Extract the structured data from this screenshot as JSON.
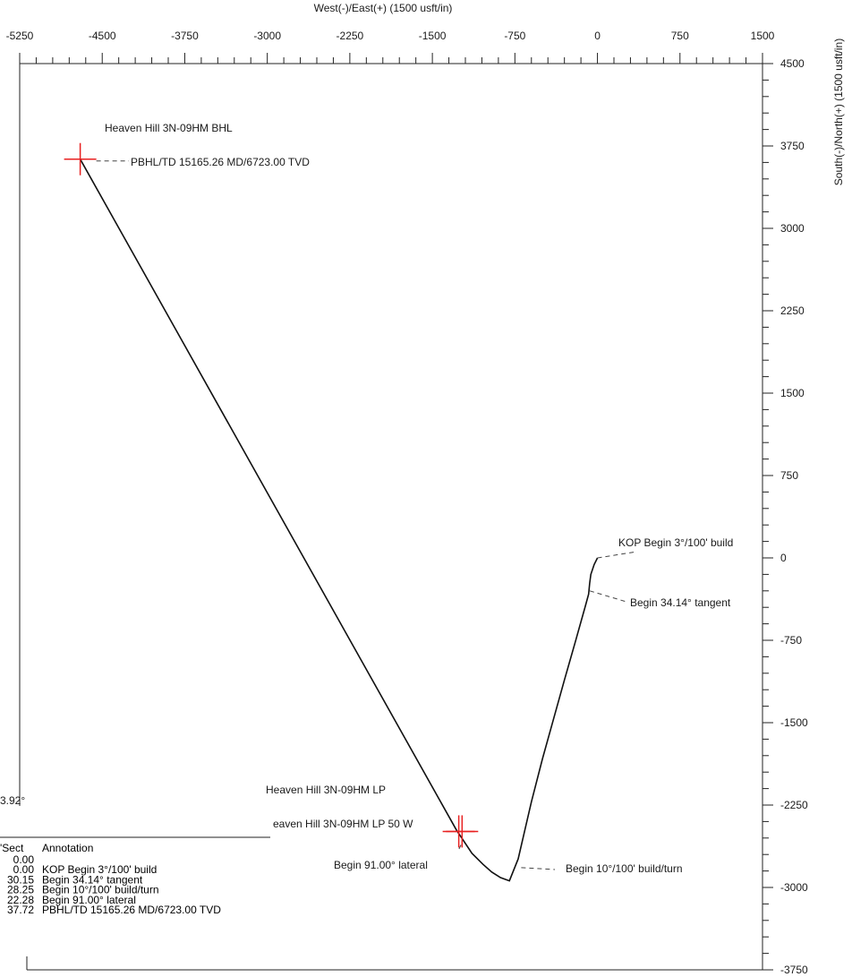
{
  "chart_data": {
    "type": "line",
    "title": "",
    "xlabel": "West(-)/East(+) (1500 usft/in)",
    "ylabel": "South(-)/North(+) (1500 usft/in)",
    "xlim": [
      -5250,
      1500
    ],
    "ylim": [
      -3750,
      4500
    ],
    "x_ticks": [
      "-5250",
      "-4500",
      "-3750",
      "-3000",
      "-2250",
      "-1500",
      "-750",
      "0",
      "750",
      "1500"
    ],
    "y_ticks": [
      "4500",
      "3750",
      "3000",
      "2250",
      "1500",
      "750",
      "0",
      "-750",
      "-1500",
      "-2250",
      "-3000",
      "-3750"
    ],
    "series": [
      {
        "name": "",
        "points": [
          [
            0,
            0
          ],
          [
            -30,
            -60
          ],
          [
            -60,
            -150
          ],
          [
            -70,
            -230
          ],
          [
            -80,
            -330
          ],
          [
            -110,
            -440
          ],
          [
            -200,
            -760
          ],
          [
            -300,
            -1110
          ],
          [
            -400,
            -1470
          ],
          [
            -500,
            -1830
          ],
          [
            -600,
            -2220
          ],
          [
            -660,
            -2480
          ],
          [
            -720,
            -2740
          ],
          [
            -800,
            -2940
          ],
          [
            -880,
            -2910
          ],
          [
            -960,
            -2860
          ],
          [
            -1040,
            -2790
          ],
          [
            -1140,
            -2690
          ],
          [
            -1280,
            -2480
          ],
          [
            -4700,
            3630
          ]
        ]
      }
    ],
    "targets": [
      {
        "label": "Heaven Hill 3N-09HM BHL",
        "x": -4700,
        "y": 3630
      },
      {
        "label": "Heaven Hill 3N-09HM LP",
        "x": -1260,
        "y": -2490
      },
      {
        "label": "eaven Hill 3N-09HM LP 50 W",
        "x": -1230,
        "y": -2490
      }
    ],
    "annotations": [
      {
        "text": "PBHL/TD 15165.26 MD/6723.00 TVD",
        "x": -4700,
        "y": 3630
      },
      {
        "text": "KOP Begin 3°/100' build",
        "x": 0,
        "y": 0
      },
      {
        "text": "Begin 34.14° tangent",
        "x": -70,
        "y": -300
      },
      {
        "text": "Begin 10°/100' build/turn",
        "x": -790,
        "y": -2950
      },
      {
        "text": "Begin 91.00° lateral",
        "x": -1240,
        "y": -2580
      }
    ]
  },
  "partial": {
    "angle": "3.92°",
    "table_header": [
      "'Sect",
      "Annotation"
    ],
    "table_rows": [
      [
        "0.00",
        ""
      ],
      [
        "0.00",
        "KOP Begin 3°/100' build"
      ],
      [
        "30.15",
        "Begin 34.14° tangent"
      ],
      [
        "28.25",
        "Begin 10°/100' build/turn"
      ],
      [
        "22.28",
        "Begin 91.00° lateral"
      ],
      [
        "37.72",
        "PBHL/TD 15165.26 MD/6723.00 TVD"
      ]
    ]
  },
  "colors": {
    "path": "#111111",
    "target": "#e82020",
    "axis": "#222222",
    "leader": "#444444"
  }
}
